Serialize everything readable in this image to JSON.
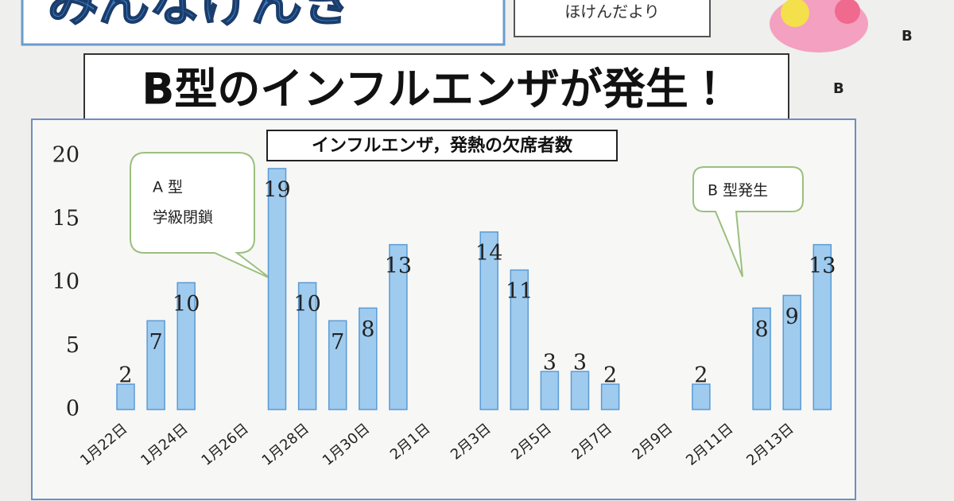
{
  "header": {
    "masthead": "みんなげんき",
    "subtitle": "ほけんだより",
    "mark": "B"
  },
  "headline": "B型のインフルエンザが発生！",
  "side_mark": "B",
  "chart_data": {
    "type": "bar",
    "title": "インフルエンザ，発熱の欠席者数",
    "categories": [
      "1月22日",
      null,
      "1月24日",
      null,
      "1月26日",
      null,
      "1月28日",
      null,
      "1月30日",
      null,
      "2月1日",
      null,
      "2月3日",
      null,
      "2月5日",
      null,
      "2月7日",
      null,
      "2月9日",
      null,
      "2月11日",
      null,
      "2月13日",
      null
    ],
    "values": [
      2,
      7,
      10,
      null,
      null,
      19,
      10,
      7,
      8,
      13,
      null,
      null,
      14,
      11,
      3,
      3,
      2,
      null,
      null,
      2,
      null,
      8,
      9,
      13
    ],
    "color": "#9fcbee",
    "ylim": [
      0,
      20
    ],
    "yticks": [
      0,
      5,
      10,
      15,
      20
    ],
    "annotations": [
      "A 型",
      "学級閉鎖",
      "B 型発生"
    ]
  }
}
